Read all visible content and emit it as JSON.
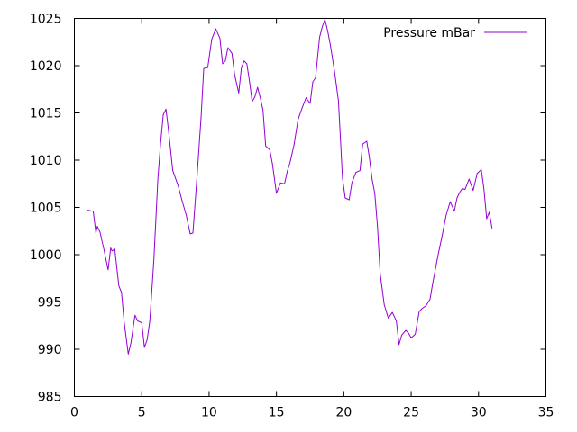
{
  "chart_data": {
    "type": "line",
    "title": "",
    "xlabel": "",
    "ylabel": "",
    "xlim": [
      0,
      35
    ],
    "ylim": [
      985,
      1025
    ],
    "x_ticks": [
      0,
      5,
      10,
      15,
      20,
      25,
      30,
      35
    ],
    "y_ticks": [
      985,
      990,
      995,
      1000,
      1005,
      1010,
      1015,
      1020,
      1025
    ],
    "grid": false,
    "legend_position": "top-right",
    "series": [
      {
        "name": "Pressure mBar",
        "color": "#9400d3",
        "x": [
          1.0,
          1.4,
          1.6,
          1.7,
          1.9,
          2.2,
          2.5,
          2.7,
          2.8,
          3.0,
          3.3,
          3.5,
          3.7,
          4.0,
          4.2,
          4.5,
          4.7,
          5.0,
          5.2,
          5.4,
          5.6,
          5.9,
          6.2,
          6.4,
          6.6,
          6.8,
          7.0,
          7.3,
          7.5,
          7.7,
          8.0,
          8.3,
          8.6,
          8.8,
          9.1,
          9.4,
          9.6,
          9.9,
          10.2,
          10.5,
          10.8,
          11.0,
          11.2,
          11.4,
          11.7,
          11.9,
          12.2,
          12.4,
          12.6,
          12.8,
          13.0,
          13.2,
          13.4,
          13.6,
          13.8,
          14.0,
          14.2,
          14.5,
          14.7,
          15.0,
          15.3,
          15.6,
          15.8,
          16.0,
          16.3,
          16.6,
          16.9,
          17.2,
          17.5,
          17.7,
          17.9,
          18.2,
          18.4,
          18.6,
          18.8,
          19.0,
          19.3,
          19.6,
          19.9,
          20.1,
          20.4,
          20.6,
          20.9,
          21.2,
          21.4,
          21.7,
          21.9,
          22.1,
          22.3,
          22.5,
          22.7,
          23.0,
          23.3,
          23.6,
          23.9,
          24.1,
          24.3,
          24.6,
          24.8,
          25.0,
          25.3,
          25.6,
          25.8,
          26.1,
          26.4,
          26.6,
          27.0,
          27.3,
          27.6,
          27.9,
          28.2,
          28.4,
          28.6,
          28.8,
          29.0,
          29.3,
          29.6,
          29.9,
          30.2,
          30.4,
          30.6,
          30.8,
          31.0
        ],
        "values": [
          1004.7,
          1004.6,
          1002.3,
          1003.0,
          1002.4,
          1000.5,
          998.4,
          1000.7,
          1000.4,
          1000.6,
          996.7,
          996.0,
          992.8,
          989.5,
          990.7,
          993.6,
          993.0,
          992.8,
          990.2,
          991.0,
          993.0,
          999.5,
          1008.0,
          1011.8,
          1014.8,
          1015.4,
          1013.0,
          1008.9,
          1008.1,
          1007.3,
          1005.7,
          1004.2,
          1002.2,
          1002.3,
          1008.2,
          1014.5,
          1019.7,
          1019.8,
          1022.8,
          1023.9,
          1022.9,
          1020.2,
          1020.5,
          1021.9,
          1021.3,
          1019.0,
          1017.1,
          1019.8,
          1020.5,
          1020.2,
          1018.3,
          1016.2,
          1016.7,
          1017.7,
          1016.6,
          1015.3,
          1011.5,
          1011.1,
          1009.6,
          1006.5,
          1007.6,
          1007.5,
          1008.8,
          1009.7,
          1011.6,
          1014.3,
          1015.5,
          1016.6,
          1016.0,
          1018.3,
          1018.7,
          1023.0,
          1024.1,
          1024.9,
          1023.7,
          1022.2,
          1019.5,
          1016.3,
          1008.1,
          1006.0,
          1005.8,
          1007.6,
          1008.7,
          1008.9,
          1011.7,
          1012.0,
          1010.3,
          1008.0,
          1006.5,
          1003.0,
          998.0,
          994.7,
          993.3,
          993.9,
          993.0,
          990.5,
          991.5,
          992.0,
          991.7,
          991.2,
          991.6,
          994.0,
          994.3,
          994.6,
          995.3,
          997.0,
          1000.0,
          1002.0,
          1004.2,
          1005.6,
          1004.6,
          1006.0,
          1006.6,
          1007.0,
          1006.9,
          1008.0,
          1006.8,
          1008.6,
          1009.0,
          1006.9,
          1003.8,
          1004.5,
          1002.8
        ]
      }
    ]
  }
}
